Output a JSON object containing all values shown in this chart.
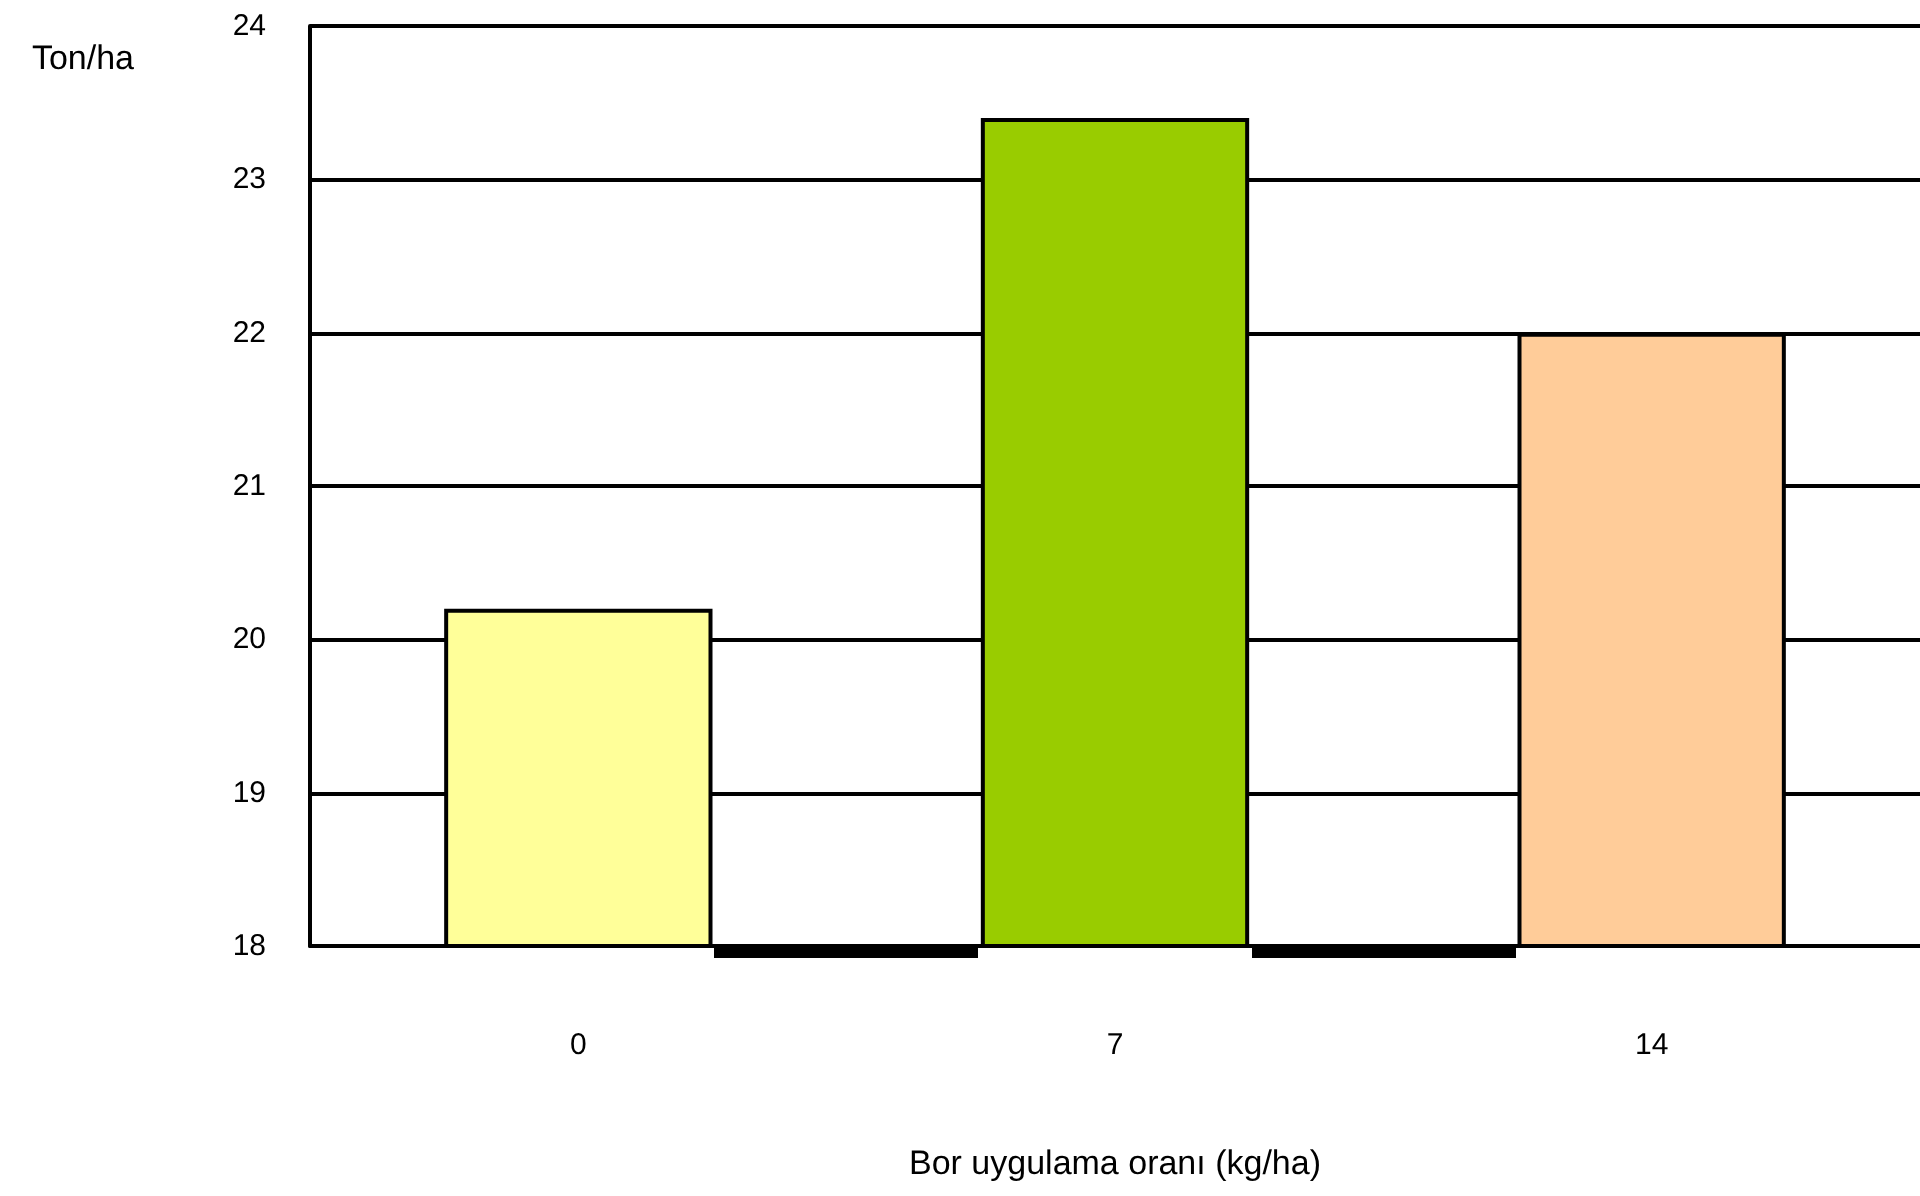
{
  "chart_data": {
    "type": "bar",
    "categories": [
      "0",
      "7",
      "14"
    ],
    "values": [
      20.2,
      23.4,
      22.0
    ],
    "colors": [
      "#ffff99",
      "#99cc00",
      "#ffcc99"
    ],
    "xlabel": "Bor uygulama oranı (kg/ha)",
    "ylabel": "Ton/ha",
    "ylim": [
      18,
      24
    ],
    "yticks": [
      18,
      19,
      20,
      21,
      22,
      23,
      24
    ],
    "grid": "y"
  }
}
